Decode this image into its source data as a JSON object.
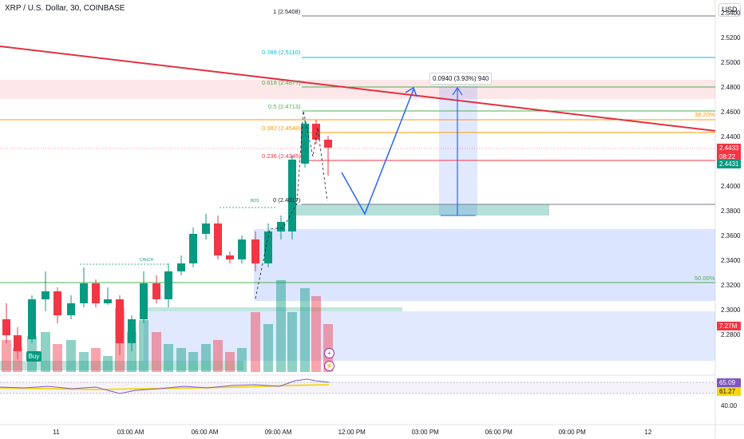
{
  "header": {
    "symbol_title": "XRP / U.S. Dollar, 30, COINBASE",
    "currency_button": "USD"
  },
  "price_axis": {
    "ticks": [
      "2.5400",
      "2.5200",
      "2.5000",
      "2.4800",
      "2.4600",
      "2.4400",
      "2.4200",
      "2.4000",
      "2.3800",
      "2.3600",
      "2.3400",
      "2.3200",
      "2.3000",
      "2.2800"
    ],
    "last_price": "2.4433",
    "countdown": "08:22",
    "bid_price": "2.4431",
    "volume_badge": "7.27M",
    "rsi_value": "65.09",
    "rsi_ma_value": "61.27",
    "rsi_tick": "40.00"
  },
  "time_axis": {
    "ticks": [
      "11",
      "03:00 AM",
      "06:00 AM",
      "09:00 AM",
      "12:00 PM",
      "03:00 PM",
      "06:00 PM",
      "09:00 PM",
      "12"
    ]
  },
  "fibonacci": [
    {
      "label": "1 (2.5408)",
      "color": "#131722"
    },
    {
      "label": "0.786 (2.5110)",
      "color": "#00bcd4"
    },
    {
      "label": "0.618 (2.4877)",
      "color": "#4caf50"
    },
    {
      "label": "0.5 (2.4713)",
      "color": "#4caf50"
    },
    {
      "label": "0.382 (2.4548)",
      "color": "#ff9800"
    },
    {
      "label": "0.236 (2.4345)",
      "color": "#f23645"
    },
    {
      "label": "0 (2.4017)",
      "color": "#787b86"
    }
  ],
  "annotations": {
    "measure_box": "0.0940 (3.93%) 940",
    "pct_38": "38.20%",
    "pct_50": "50.00%",
    "buy_marker": "Buy",
    "bos_label": "BOS",
    "choch_label": "CHoCH"
  },
  "colors": {
    "up": "#089981",
    "down": "#f23645",
    "trendline": "#e2303f",
    "projection": "#2962ff",
    "rsi": "#7e57c2",
    "rsi_ma": "#f5d60f"
  }
}
